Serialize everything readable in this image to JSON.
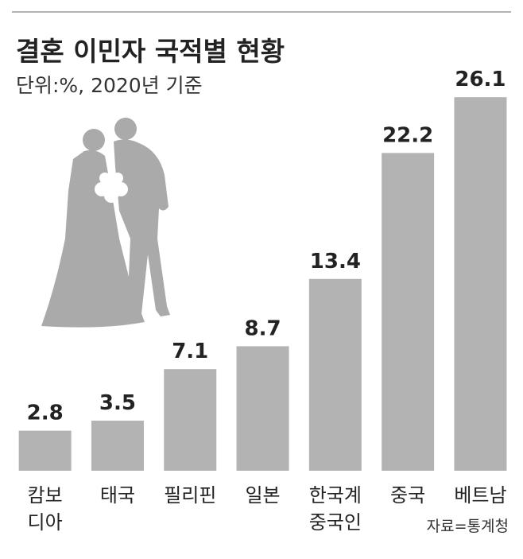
{
  "title": "결혼 이민자 국적별 현황",
  "subtitle": "단위:%, 2020년 기준",
  "source": "자료=통계청",
  "chart_data": {
    "type": "bar",
    "categories": [
      "캄보\n디아",
      "태국",
      "필리핀",
      "일본",
      "한국계\n중국인",
      "중국",
      "베트남"
    ],
    "values": [
      2.8,
      3.5,
      7.1,
      8.7,
      13.4,
      22.2,
      26.1
    ],
    "color": "#b3b3b3",
    "ylim": [
      0,
      28
    ]
  }
}
